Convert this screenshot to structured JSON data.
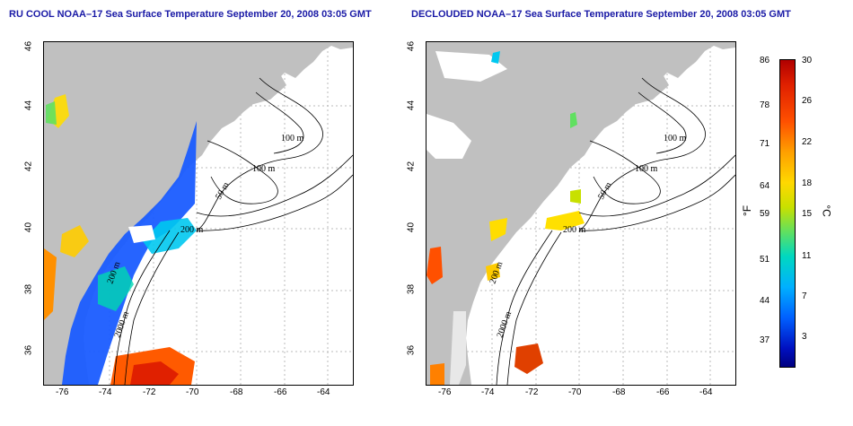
{
  "titles": {
    "left": "RU COOL NOAA–17 Sea Surface Temperature September 20, 2008 03:05 GMT",
    "right": "DECLOUDED NOAA–17 Sea Surface Temperature September 20, 2008 03:05 GMT"
  },
  "x_ticks": [
    "-76",
    "-74",
    "-72",
    "-70",
    "-68",
    "-66",
    "-64"
  ],
  "y_ticks": [
    "46",
    "44",
    "42",
    "40",
    "38",
    "36"
  ],
  "contour_labels": {
    "left": [
      "100 m",
      "100 m",
      "50 m",
      "200 m",
      "200 m",
      "2000 m"
    ],
    "right": [
      "100 m",
      "100 m",
      "50 m",
      "200 m",
      "200 m",
      "2000 m"
    ]
  },
  "colorbar": {
    "fahrenheit_unit": "°F",
    "celsius_unit": "°C",
    "fahrenheit_ticks": [
      "86",
      "78",
      "71",
      "64",
      "59",
      "51",
      "44",
      "37"
    ],
    "celsius_ticks": [
      "30",
      "26",
      "22",
      "18",
      "15",
      "11",
      "7",
      "3"
    ]
  },
  "colors": {
    "land": "#c0c0c0",
    "title": "#1a1aa6"
  }
}
